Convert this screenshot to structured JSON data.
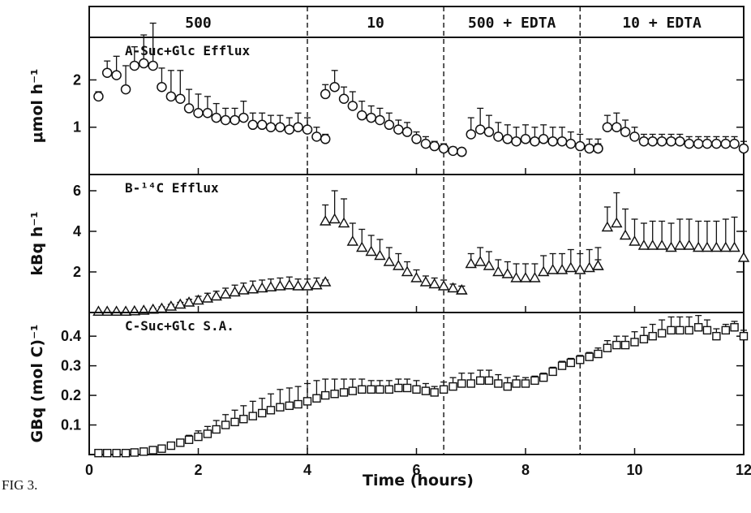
{
  "figure_caption": "FIG 3.",
  "shared_x": {
    "label": "Time (hours)",
    "lim": [
      0,
      12
    ],
    "ticks": [
      0,
      2,
      4,
      6,
      8,
      10,
      12
    ],
    "tick_labels": [
      "0",
      "2",
      "4",
      "6",
      "8",
      "10",
      "12"
    ]
  },
  "treatments": [
    {
      "label": "500",
      "start": 0,
      "end": 4
    },
    {
      "label": "10",
      "start": 4,
      "end": 6.5
    },
    {
      "label": "500 + EDTA",
      "start": 6.5,
      "end": 9
    },
    {
      "label": "10 + EDTA",
      "start": 9,
      "end": 12
    }
  ],
  "chart_data": [
    {
      "type": "scatter",
      "title": "A-Suc+Glc Efflux",
      "ylabel": "μmol h⁻¹",
      "ylim": [
        0,
        2.9
      ],
      "yticks": [
        1,
        2
      ],
      "ytick_labels": [
        "1",
        "2"
      ],
      "marker": "circle",
      "series": [
        {
          "segment": 1,
          "x": [
            0.17,
            0.33,
            0.5,
            0.67,
            0.83,
            1.0,
            1.17,
            1.33,
            1.5,
            1.67,
            1.83,
            2.0,
            2.17,
            2.33,
            2.5,
            2.67,
            2.83,
            3.0,
            3.17,
            3.33,
            3.5,
            3.67,
            3.83,
            4.0,
            4.17,
            4.33
          ],
          "y": [
            1.65,
            2.15,
            2.1,
            1.8,
            2.3,
            2.35,
            2.3,
            1.85,
            1.65,
            1.6,
            1.4,
            1.3,
            1.3,
            1.2,
            1.15,
            1.15,
            1.2,
            1.05,
            1.05,
            1.0,
            1.0,
            0.95,
            1.0,
            0.95,
            0.8,
            0.75
          ],
          "err": [
            0.1,
            0.25,
            0.4,
            0.5,
            0.4,
            0.6,
            0.9,
            0.4,
            0.55,
            0.6,
            0.4,
            0.4,
            0.35,
            0.3,
            0.25,
            0.25,
            0.35,
            0.25,
            0.25,
            0.25,
            0.25,
            0.25,
            0.3,
            0.25,
            0.2,
            0.1
          ]
        },
        {
          "segment": 2,
          "x": [
            4.33,
            4.5,
            4.67,
            4.83,
            5.0,
            5.17,
            5.33,
            5.5,
            5.67,
            5.83,
            6.0,
            6.17,
            6.33,
            6.5,
            6.67,
            6.83
          ],
          "y": [
            1.7,
            1.85,
            1.6,
            1.45,
            1.25,
            1.2,
            1.15,
            1.05,
            0.95,
            0.9,
            0.75,
            0.65,
            0.6,
            0.55,
            0.5,
            0.48
          ],
          "err": [
            0.2,
            0.35,
            0.25,
            0.3,
            0.3,
            0.25,
            0.25,
            0.25,
            0.2,
            0.2,
            0.15,
            0.15,
            0.1,
            0.1,
            0.08,
            0.06
          ]
        },
        {
          "segment": 3,
          "x": [
            6.83,
            7.0,
            7.17,
            7.33,
            7.5,
            7.67,
            7.83,
            8.0,
            8.17,
            8.33,
            8.5,
            8.67,
            8.83,
            9.0,
            9.17,
            9.33
          ],
          "y": [
            0.48,
            0.85,
            0.95,
            0.9,
            0.8,
            0.75,
            0.7,
            0.75,
            0.7,
            0.75,
            0.7,
            0.7,
            0.65,
            0.6,
            0.55,
            0.55
          ],
          "err": [
            0.05,
            0.35,
            0.45,
            0.35,
            0.3,
            0.3,
            0.3,
            0.3,
            0.3,
            0.3,
            0.3,
            0.3,
            0.25,
            0.25,
            0.2,
            0.2
          ]
        },
        {
          "segment": 4,
          "x": [
            9.33,
            9.5,
            9.67,
            9.83,
            10.0,
            10.17,
            10.33,
            10.5,
            10.67,
            10.83,
            11.0,
            11.17,
            11.33,
            11.5,
            11.67,
            11.83,
            12.0
          ],
          "y": [
            0.55,
            1.0,
            1.0,
            0.9,
            0.8,
            0.7,
            0.7,
            0.7,
            0.7,
            0.7,
            0.65,
            0.65,
            0.65,
            0.65,
            0.65,
            0.65,
            0.55
          ],
          "err": [
            0.1,
            0.25,
            0.3,
            0.25,
            0.2,
            0.15,
            0.15,
            0.15,
            0.15,
            0.15,
            0.15,
            0.15,
            0.15,
            0.15,
            0.15,
            0.15,
            0.15
          ]
        }
      ]
    },
    {
      "type": "scatter",
      "title": "B-¹⁴C Efflux",
      "ylabel": "kBq h⁻¹",
      "ylim": [
        0,
        6.8
      ],
      "yticks": [
        2,
        4,
        6
      ],
      "ytick_labels": [
        "2",
        "4",
        "6"
      ],
      "marker": "triangle",
      "series": [
        {
          "segment": 1,
          "x": [
            0.17,
            0.33,
            0.5,
            0.67,
            0.83,
            1.0,
            1.17,
            1.33,
            1.5,
            1.67,
            1.83,
            2.0,
            2.17,
            2.33,
            2.5,
            2.67,
            2.83,
            3.0,
            3.17,
            3.33,
            3.5,
            3.67,
            3.83,
            4.0,
            4.17,
            4.33
          ],
          "y": [
            0.05,
            0.05,
            0.05,
            0.05,
            0.07,
            0.1,
            0.15,
            0.2,
            0.3,
            0.4,
            0.5,
            0.6,
            0.7,
            0.8,
            0.9,
            1.0,
            1.1,
            1.15,
            1.2,
            1.25,
            1.3,
            1.35,
            1.3,
            1.3,
            1.35,
            1.5
          ],
          "err": [
            0.02,
            0.02,
            0.02,
            0.02,
            0.03,
            0.05,
            0.05,
            0.08,
            0.1,
            0.1,
            0.15,
            0.2,
            0.25,
            0.25,
            0.3,
            0.35,
            0.35,
            0.4,
            0.4,
            0.4,
            0.4,
            0.4,
            0.35,
            0.35,
            0.35,
            0.1
          ]
        },
        {
          "segment": 2,
          "x": [
            4.33,
            4.5,
            4.67,
            4.83,
            5.0,
            5.17,
            5.33,
            5.5,
            5.67,
            5.83,
            6.0,
            6.17,
            6.33,
            6.5,
            6.67,
            6.83
          ],
          "y": [
            4.5,
            4.6,
            4.4,
            3.5,
            3.2,
            3.0,
            2.8,
            2.5,
            2.3,
            2.0,
            1.7,
            1.5,
            1.4,
            1.3,
            1.2,
            1.1
          ],
          "err": [
            0.8,
            1.4,
            1.2,
            0.9,
            0.9,
            0.8,
            0.8,
            0.7,
            0.6,
            0.5,
            0.4,
            0.3,
            0.3,
            0.3,
            0.2,
            0.2
          ]
        },
        {
          "segment": 3,
          "x": [
            6.83,
            7.0,
            7.17,
            7.33,
            7.5,
            7.67,
            7.83,
            8.0,
            8.17,
            8.33,
            8.5,
            8.67,
            8.83,
            9.0,
            9.17,
            9.33
          ],
          "y": [
            1.1,
            2.4,
            2.5,
            2.3,
            2.0,
            1.9,
            1.7,
            1.7,
            1.7,
            2.0,
            2.1,
            2.1,
            2.2,
            2.1,
            2.2,
            2.3
          ],
          "err": [
            0.2,
            0.5,
            0.7,
            0.7,
            0.6,
            0.6,
            0.7,
            0.7,
            0.7,
            0.8,
            0.8,
            0.8,
            0.9,
            0.8,
            0.9,
            0.9
          ]
        },
        {
          "segment": 4,
          "x": [
            9.33,
            9.5,
            9.67,
            9.83,
            10.0,
            10.17,
            10.33,
            10.5,
            10.67,
            10.83,
            11.0,
            11.17,
            11.33,
            11.5,
            11.67,
            11.83,
            12.0
          ],
          "y": [
            2.3,
            4.2,
            4.4,
            3.8,
            3.5,
            3.3,
            3.3,
            3.3,
            3.2,
            3.3,
            3.3,
            3.2,
            3.2,
            3.2,
            3.2,
            3.2,
            2.7
          ],
          "err": [
            0.3,
            1.0,
            1.5,
            1.3,
            1.1,
            1.1,
            1.2,
            1.2,
            1.2,
            1.3,
            1.3,
            1.3,
            1.3,
            1.3,
            1.4,
            1.5,
            1.3
          ]
        }
      ]
    },
    {
      "type": "scatter",
      "title": "C-Suc+Glc S.A.",
      "ylabel": "GBq (mol C)⁻¹",
      "ylim": [
        0,
        0.48
      ],
      "yticks": [
        0.1,
        0.2,
        0.3,
        0.4
      ],
      "ytick_labels": [
        "0.1",
        "0.2",
        "0.3",
        "0.4"
      ],
      "marker": "square",
      "series": [
        {
          "segment": 1,
          "x": [
            0.17,
            0.33,
            0.5,
            0.67,
            0.83,
            1.0,
            1.17,
            1.33,
            1.5,
            1.67,
            1.83,
            2.0,
            2.17,
            2.33,
            2.5,
            2.67,
            2.83,
            3.0,
            3.17,
            3.33,
            3.5,
            3.67,
            3.83,
            4.0,
            4.17,
            4.33,
            4.5,
            4.67,
            4.83,
            5.0,
            5.17,
            5.33,
            5.5,
            5.67,
            5.83,
            6.0,
            6.17,
            6.33,
            6.5,
            6.67,
            6.83,
            7.0,
            7.17,
            7.33,
            7.5,
            7.67,
            7.83,
            8.0,
            8.17,
            8.33,
            8.5,
            8.67,
            8.83,
            9.0,
            9.17,
            9.33,
            9.5,
            9.67,
            9.83,
            10.0,
            10.17,
            10.33,
            10.5,
            10.67,
            10.83,
            11.0,
            11.17,
            11.33,
            11.5,
            11.67,
            11.83,
            12.0
          ],
          "y": [
            0.005,
            0.005,
            0.005,
            0.005,
            0.007,
            0.01,
            0.015,
            0.02,
            0.03,
            0.04,
            0.05,
            0.06,
            0.07,
            0.085,
            0.1,
            0.11,
            0.12,
            0.13,
            0.14,
            0.15,
            0.16,
            0.165,
            0.17,
            0.18,
            0.19,
            0.2,
            0.205,
            0.21,
            0.215,
            0.22,
            0.22,
            0.22,
            0.22,
            0.225,
            0.225,
            0.22,
            0.215,
            0.21,
            0.22,
            0.23,
            0.24,
            0.24,
            0.25,
            0.25,
            0.24,
            0.23,
            0.24,
            0.24,
            0.25,
            0.26,
            0.28,
            0.3,
            0.31,
            0.32,
            0.33,
            0.34,
            0.36,
            0.37,
            0.37,
            0.38,
            0.39,
            0.4,
            0.41,
            0.42,
            0.42,
            0.42,
            0.43,
            0.42,
            0.4,
            0.42,
            0.43,
            0.4
          ],
          "err": [
            0.002,
            0.002,
            0.002,
            0.002,
            0.003,
            0.004,
            0.005,
            0.006,
            0.008,
            0.01,
            0.015,
            0.02,
            0.025,
            0.03,
            0.035,
            0.04,
            0.045,
            0.05,
            0.05,
            0.055,
            0.06,
            0.06,
            0.06,
            0.06,
            0.06,
            0.055,
            0.05,
            0.045,
            0.04,
            0.035,
            0.03,
            0.03,
            0.03,
            0.03,
            0.03,
            0.03,
            0.025,
            0.02,
            0.025,
            0.03,
            0.035,
            0.035,
            0.035,
            0.035,
            0.03,
            0.03,
            0.025,
            0.02,
            0.015,
            0.015,
            0.015,
            0.015,
            0.015,
            0.015,
            0.015,
            0.02,
            0.025,
            0.03,
            0.03,
            0.035,
            0.04,
            0.04,
            0.045,
            0.045,
            0.045,
            0.045,
            0.04,
            0.035,
            0.025,
            0.02,
            0.02,
            0.02
          ]
        }
      ]
    }
  ]
}
